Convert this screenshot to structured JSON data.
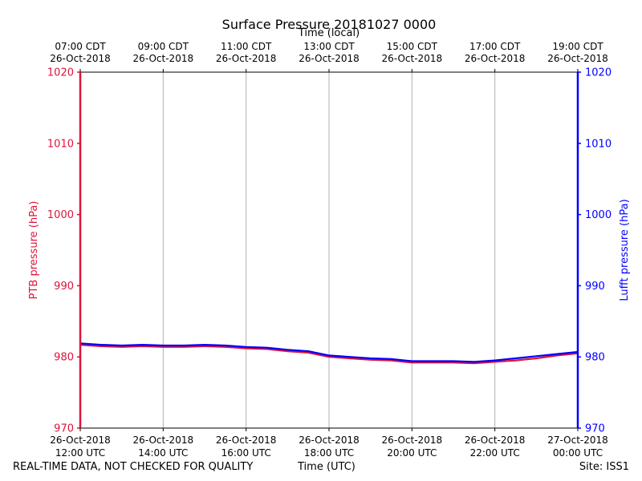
{
  "chart_data": {
    "type": "line",
    "title": "Surface Pressure 20181027 0000",
    "top_axis_label": "Time (local)",
    "xlabel": "Time (UTC)",
    "ylabel_left": "PTB pressure (hPa)",
    "ylabel_right": "Lufft pressure (hPa)",
    "ylim": [
      970,
      1020
    ],
    "yticks": [
      "970",
      "980",
      "990",
      "1000",
      "1010",
      "1020"
    ],
    "x_hours_range": [
      12,
      24
    ],
    "bottom_ticks": [
      {
        "hour": 12,
        "line1": "26-Oct-2018",
        "line2": "12:00 UTC"
      },
      {
        "hour": 14,
        "line1": "26-Oct-2018",
        "line2": "14:00 UTC"
      },
      {
        "hour": 16,
        "line1": "26-Oct-2018",
        "line2": "16:00 UTC"
      },
      {
        "hour": 18,
        "line1": "26-Oct-2018",
        "line2": "18:00 UTC"
      },
      {
        "hour": 20,
        "line1": "26-Oct-2018",
        "line2": "20:00 UTC"
      },
      {
        "hour": 22,
        "line1": "26-Oct-2018",
        "line2": "22:00 UTC"
      },
      {
        "hour": 24,
        "line1": "27-Oct-2018",
        "line2": "00:00 UTC"
      }
    ],
    "top_ticks": [
      {
        "hour": 12,
        "line1": "07:00 CDT",
        "line2": "26-Oct-2018"
      },
      {
        "hour": 14,
        "line1": "09:00 CDT",
        "line2": "26-Oct-2018"
      },
      {
        "hour": 16,
        "line1": "11:00 CDT",
        "line2": "26-Oct-2018"
      },
      {
        "hour": 18,
        "line1": "13:00 CDT",
        "line2": "26-Oct-2018"
      },
      {
        "hour": 20,
        "line1": "15:00 CDT",
        "line2": "26-Oct-2018"
      },
      {
        "hour": 22,
        "line1": "17:00 CDT",
        "line2": "26-Oct-2018"
      },
      {
        "hour": 24,
        "line1": "19:00 CDT",
        "line2": "26-Oct-2018"
      }
    ],
    "grid": true,
    "series": [
      {
        "name": "PTB pressure (hPa)",
        "color": "#dc143c",
        "x_hours": [
          12.0,
          12.5,
          13.0,
          13.5,
          14.0,
          14.5,
          15.0,
          15.5,
          16.0,
          16.5,
          17.0,
          17.5,
          18.0,
          18.5,
          19.0,
          19.5,
          20.0,
          20.5,
          21.0,
          21.5,
          22.0,
          22.5,
          23.0,
          23.5,
          24.0
        ],
        "values": [
          981.7,
          981.5,
          981.4,
          981.5,
          981.4,
          981.4,
          981.5,
          981.4,
          981.2,
          981.1,
          980.8,
          980.6,
          980.0,
          979.8,
          979.6,
          979.5,
          979.2,
          979.2,
          979.2,
          979.1,
          979.3,
          979.5,
          979.8,
          980.2,
          980.5
        ]
      },
      {
        "name": "Lufft pressure (hPa)",
        "color": "#0000ff",
        "x_hours": [
          12.0,
          12.5,
          13.0,
          13.5,
          14.0,
          14.5,
          15.0,
          15.5,
          16.0,
          16.5,
          17.0,
          17.5,
          18.0,
          18.5,
          19.0,
          19.5,
          20.0,
          20.5,
          21.0,
          21.5,
          22.0,
          22.5,
          23.0,
          23.5,
          24.0
        ],
        "values": [
          981.9,
          981.7,
          981.6,
          981.7,
          981.6,
          981.6,
          981.7,
          981.6,
          981.4,
          981.3,
          981.0,
          980.8,
          980.2,
          980.0,
          979.8,
          979.7,
          979.4,
          979.4,
          979.4,
          979.3,
          979.5,
          979.8,
          980.1,
          980.4,
          980.7
        ]
      }
    ]
  },
  "footer": {
    "disclaimer": "REAL-TIME DATA, NOT CHECKED FOR QUALITY",
    "site": "Site: ISS1"
  }
}
